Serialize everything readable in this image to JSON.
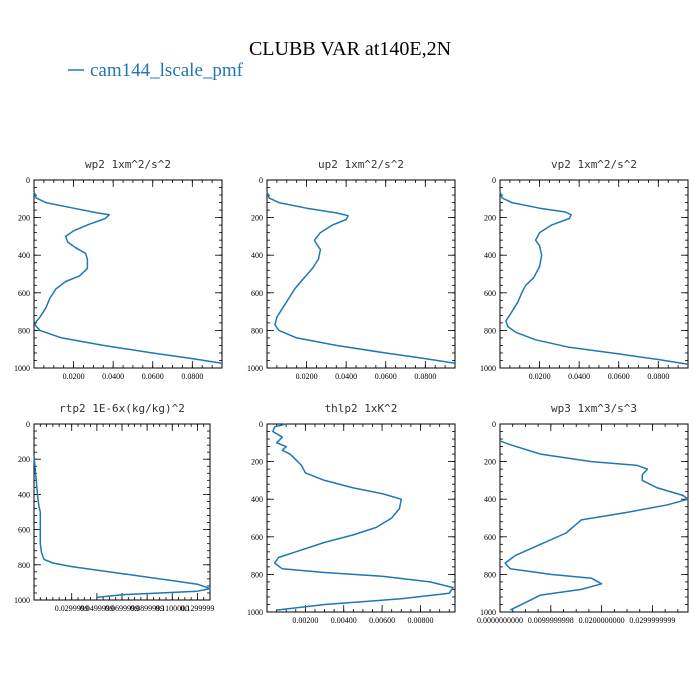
{
  "title": "CLUBB VAR at140E,2N",
  "legend": {
    "entries": [
      "cam144_lscale_pmf"
    ],
    "color": "#1f77b4"
  },
  "chart_data": [
    {
      "type": "line",
      "title": "wp2  1xm^2/s^2",
      "xlim": [
        0,
        0.095
      ],
      "ylim": [
        1000,
        0
      ],
      "xticks": [
        0.02,
        0.04,
        0.06,
        0.08
      ],
      "xtick_labels": [
        "0.0200",
        "0.0400",
        "0.0600",
        "0.0800"
      ],
      "yticks": [
        0,
        200,
        400,
        600,
        800,
        1000
      ],
      "ytick_labels": [
        "0",
        "200",
        "400",
        "600",
        "800",
        "1000"
      ],
      "series": [
        {
          "name": "cam144_lscale_pmf",
          "x": [
            0,
            0.001,
            0.006,
            0.02,
            0.032,
            0.038,
            0.036,
            0.028,
            0.02,
            0.016,
            0.017,
            0.021,
            0.026,
            0.027,
            0.027,
            0.023,
            0.016,
            0.011,
            0.008,
            0.006,
            0.003,
            0.001,
            0.0005,
            0.003,
            0.014,
            0.035,
            0.06,
            0.08,
            0.095
          ],
          "y": [
            60,
            95,
            120,
            150,
            175,
            185,
            205,
            235,
            270,
            300,
            330,
            360,
            390,
            420,
            470,
            510,
            540,
            580,
            630,
            680,
            730,
            755,
            770,
            800,
            840,
            880,
            920,
            950,
            975
          ]
        }
      ]
    },
    {
      "type": "line",
      "title": "up2  1xm^2/s^2",
      "xlim": [
        0,
        0.095
      ],
      "ylim": [
        1000,
        0
      ],
      "xticks": [
        0.02,
        0.04,
        0.06,
        0.08
      ],
      "xtick_labels": [
        "0.0200",
        "0.0400",
        "0.0600",
        "0.0800"
      ],
      "yticks": [
        0,
        200,
        400,
        600,
        800,
        1000
      ],
      "ytick_labels": [
        "0",
        "200",
        "400",
        "600",
        "800",
        "1000"
      ],
      "series": [
        {
          "name": "cam144_lscale_pmf",
          "x": [
            0,
            0.001,
            0.006,
            0.02,
            0.035,
            0.041,
            0.04,
            0.033,
            0.027,
            0.024,
            0.025,
            0.027,
            0.026,
            0.023,
            0.018,
            0.014,
            0.011,
            0.008,
            0.005,
            0.004,
            0.006,
            0.015,
            0.035,
            0.06,
            0.08,
            0.095
          ],
          "y": [
            60,
            95,
            120,
            150,
            175,
            190,
            210,
            240,
            280,
            320,
            340,
            370,
            420,
            470,
            530,
            580,
            630,
            680,
            730,
            770,
            800,
            840,
            880,
            920,
            950,
            975
          ]
        }
      ]
    },
    {
      "type": "line",
      "title": "vp2  1xm^2/s^2",
      "xlim": [
        0,
        0.095
      ],
      "ylim": [
        1000,
        0
      ],
      "xticks": [
        0.02,
        0.04,
        0.06,
        0.08
      ],
      "xtick_labels": [
        "0.0200",
        "0.0400",
        "0.0600",
        "0.0800"
      ],
      "yticks": [
        0,
        200,
        400,
        600,
        800,
        1000
      ],
      "ytick_labels": [
        "0",
        "200",
        "400",
        "600",
        "800",
        "1000"
      ],
      "series": [
        {
          "name": "cam144_lscale_pmf",
          "x": [
            0,
            0.001,
            0.006,
            0.02,
            0.033,
            0.036,
            0.035,
            0.026,
            0.02,
            0.018,
            0.02,
            0.021,
            0.02,
            0.017,
            0.013,
            0.011,
            0.009,
            0.006,
            0.003,
            0.004,
            0.008,
            0.018,
            0.035,
            0.06,
            0.08,
            0.095
          ],
          "y": [
            60,
            95,
            120,
            150,
            170,
            185,
            205,
            240,
            280,
            320,
            350,
            400,
            460,
            520,
            560,
            600,
            650,
            700,
            750,
            780,
            810,
            850,
            890,
            925,
            955,
            980
          ]
        }
      ]
    },
    {
      "type": "line",
      "title": "rtp2  1E-6x(kg/kg)^2",
      "xlim": [
        0,
        0.14
      ],
      "ylim": [
        1000,
        0
      ],
      "xticks": [
        0.03,
        0.05,
        0.07,
        0.09,
        0.11,
        0.13
      ],
      "xtick_labels": [
        "0.0299999",
        "0.0499999",
        "0.0699999",
        "0.0899999",
        "0.1100000",
        "0.1299999"
      ],
      "yticks": [
        0,
        200,
        400,
        600,
        800,
        1000
      ],
      "ytick_labels": [
        "0",
        "200",
        "400",
        "600",
        "800",
        "1000"
      ],
      "series": [
        {
          "name": "cam144_lscale_pmf",
          "x": [
            0,
            0.001,
            0.002,
            0.003,
            0.004,
            0.005,
            0.005,
            0.005,
            0.005,
            0.005,
            0.006,
            0.008,
            0.015,
            0.03,
            0.05,
            0.07,
            0.09,
            0.11,
            0.13,
            0.14,
            0.13,
            0.1,
            0.07,
            0.05
          ],
          "y": [
            180,
            260,
            340,
            420,
            470,
            500,
            540,
            580,
            620,
            680,
            730,
            770,
            790,
            810,
            830,
            850,
            870,
            890,
            910,
            935,
            950,
            960,
            970,
            985
          ]
        }
      ]
    },
    {
      "type": "line",
      "title": "thlp2  1xK^2",
      "xlim": [
        0,
        0.0098
      ],
      "ylim": [
        1000,
        0
      ],
      "xticks": [
        0.002,
        0.004,
        0.006,
        0.008
      ],
      "xtick_labels": [
        "0.00200",
        "0.00400",
        "0.00600",
        "0.00800"
      ],
      "yticks": [
        0,
        200,
        400,
        600,
        800,
        1000
      ],
      "ytick_labels": [
        "0",
        "200",
        "400",
        "600",
        "800",
        "1000"
      ],
      "series": [
        {
          "name": "cam144_lscale_pmf",
          "x": [
            0.001,
            0.0004,
            0.0003,
            0.0008,
            0.0005,
            0.001,
            0.0008,
            0.0012,
            0.0015,
            0.0018,
            0.002,
            0.003,
            0.0045,
            0.006,
            0.007,
            0.0069,
            0.0065,
            0.0057,
            0.0045,
            0.003,
            0.0015,
            0.0006,
            0.0004,
            0.0008,
            0.003,
            0.006,
            0.0085,
            0.0097,
            0.0095,
            0.007,
            0.003,
            0.0005
          ],
          "y": [
            0,
            15,
            40,
            70,
            100,
            120,
            140,
            160,
            190,
            220,
            260,
            300,
            340,
            370,
            400,
            450,
            500,
            550,
            590,
            630,
            680,
            710,
            740,
            770,
            790,
            810,
            840,
            870,
            900,
            930,
            960,
            990
          ]
        }
      ]
    },
    {
      "type": "line",
      "title": "wp3  1xm^3/s^3",
      "xlim": [
        0,
        0.037
      ],
      "ylim": [
        1000,
        0
      ],
      "xticks": [
        0,
        0.01,
        0.02,
        0.03
      ],
      "xtick_labels": [
        "0.0000000000",
        "0.0099999998",
        "0.0200000000",
        "0.0299999999"
      ],
      "yticks": [
        0,
        200,
        400,
        600,
        800,
        1000
      ],
      "ytick_labels": [
        "0",
        "200",
        "400",
        "600",
        "800",
        "1000"
      ],
      "series": [
        {
          "name": "cam144_lscale_pmf",
          "x": [
            0,
            0.002,
            0.008,
            0.018,
            0.027,
            0.029,
            0.028,
            0.028,
            0.031,
            0.036,
            0.037,
            0.033,
            0.025,
            0.016,
            0.013,
            0.008,
            0.003,
            0.001,
            0.002,
            0.01,
            0.018,
            0.02,
            0.016,
            0.008,
            0.005,
            0.002
          ],
          "y": [
            90,
            110,
            160,
            200,
            220,
            240,
            270,
            300,
            340,
            380,
            400,
            430,
            470,
            510,
            580,
            640,
            700,
            740,
            770,
            800,
            820,
            850,
            880,
            910,
            950,
            990
          ]
        }
      ]
    }
  ]
}
